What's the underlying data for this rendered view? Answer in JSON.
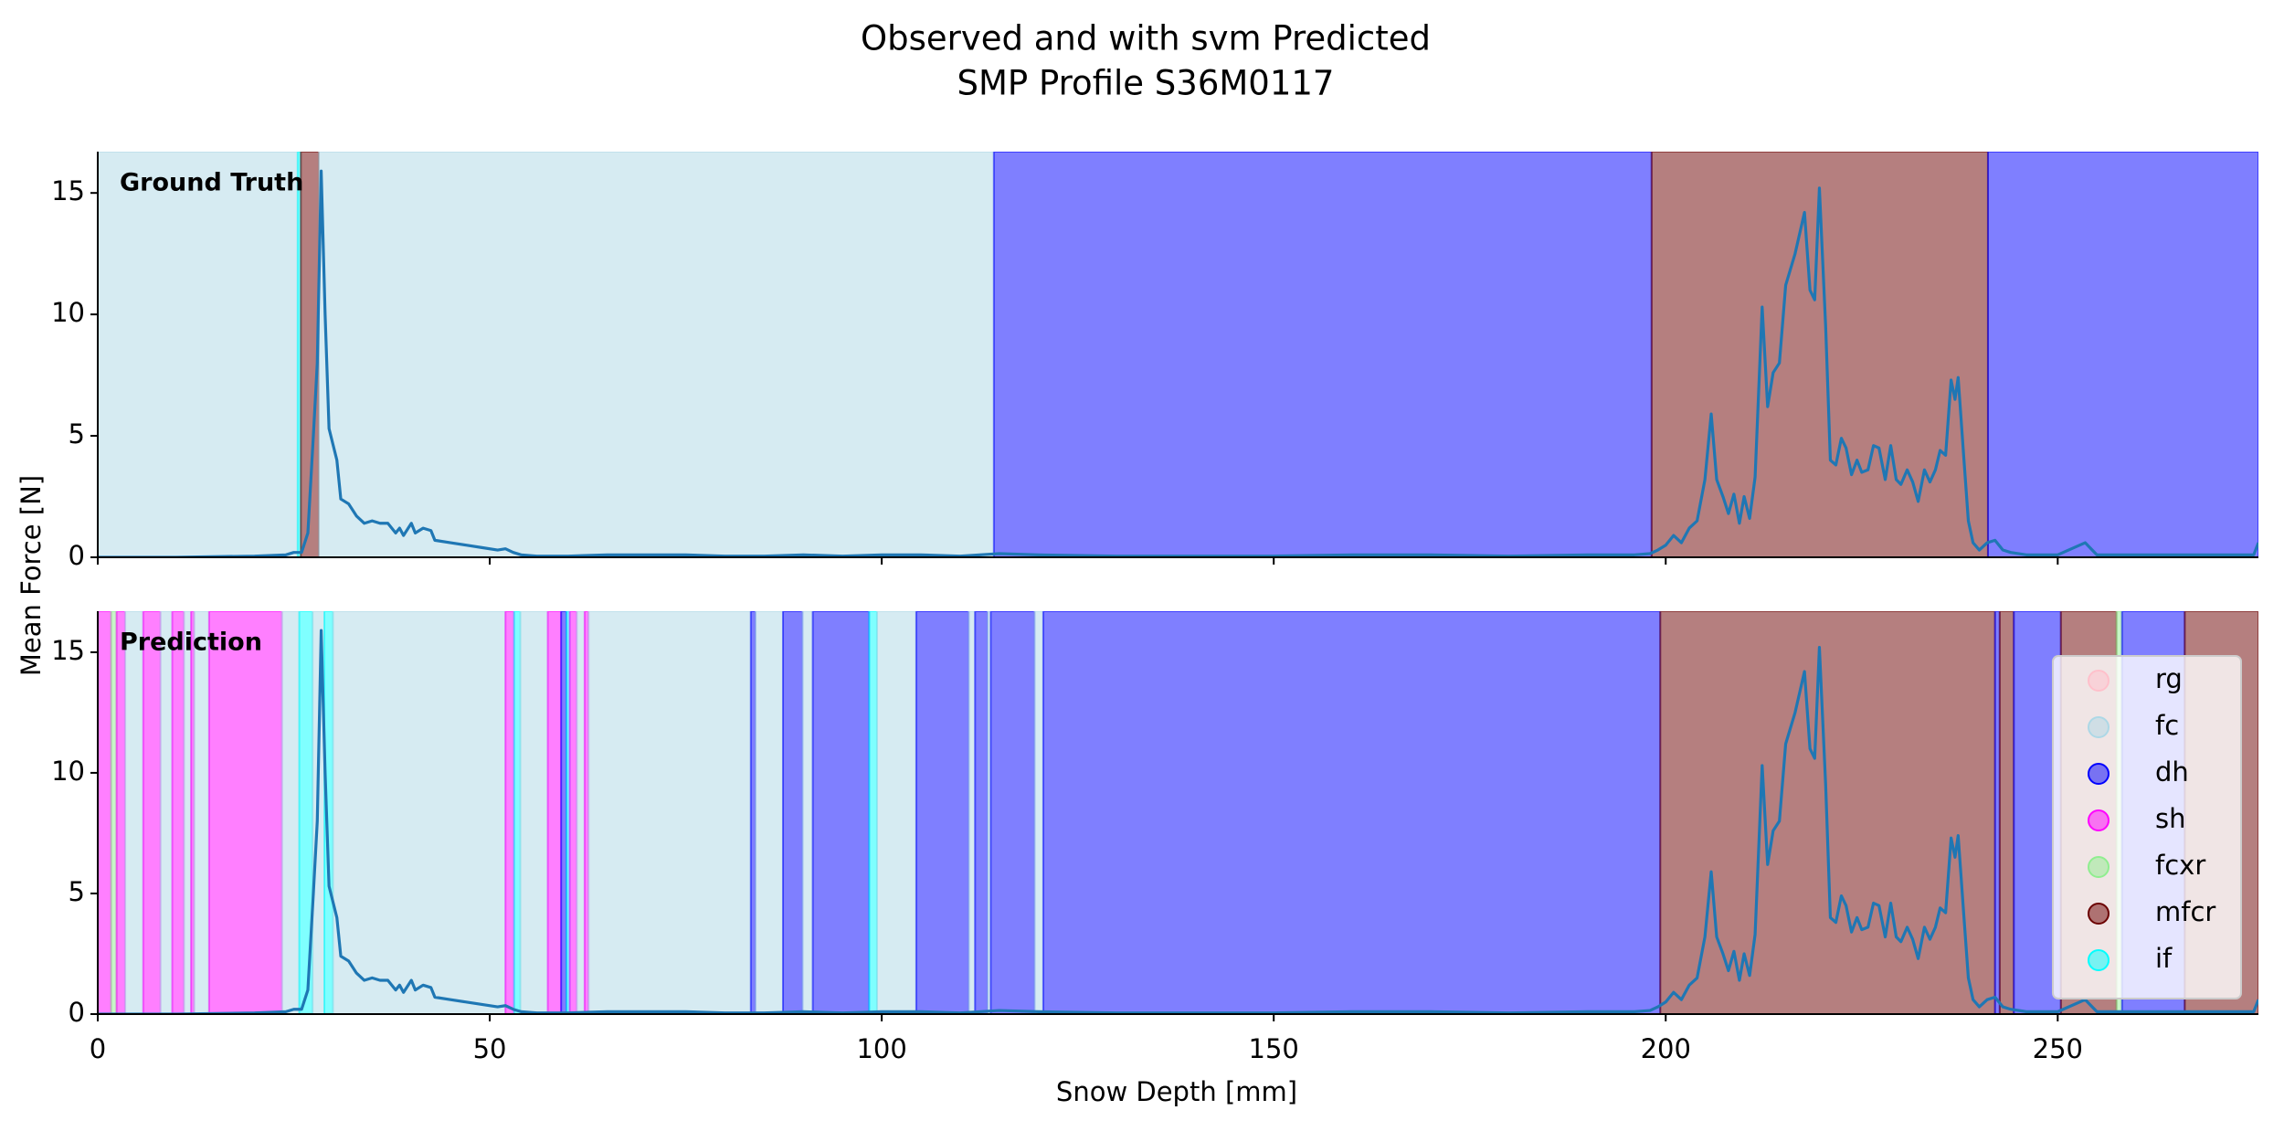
{
  "title": [
    "Observed and with svm Predicted",
    "SMP Profile S36M0117"
  ],
  "x_label": "Snow Depth [mm]",
  "y_label": "Mean Force [N]",
  "alpha": 0.5,
  "classes": [
    {
      "name": "rg",
      "color": "#ffc0cb"
    },
    {
      "name": "fc",
      "color": "#add8e6"
    },
    {
      "name": "dh",
      "color": "#0000ff"
    },
    {
      "name": "sh",
      "color": "#ff00ff"
    },
    {
      "name": "fcxr",
      "color": "#90ee90"
    },
    {
      "name": "mfcr",
      "color": "#6b0000"
    },
    {
      "name": "if",
      "color": "#00ffff"
    }
  ],
  "chart_data": [
    {
      "type": "line",
      "title": "Ground Truth",
      "color": "#1f77b4",
      "xlim": [
        0,
        275.6
      ],
      "ylim": [
        0,
        16.7
      ],
      "xticks": [
        0,
        50,
        100,
        150,
        200,
        250
      ],
      "yticks": [
        0,
        5,
        10,
        15
      ],
      "show_xtick_labels": false,
      "segments": [
        [
          "fc",
          0,
          25.5
        ],
        [
          "if",
          25.5,
          25.9
        ],
        [
          "mfcr",
          25.9,
          28.2
        ],
        [
          "fc",
          28.2,
          114.3
        ],
        [
          "dh",
          114.3,
          198.2
        ],
        [
          "mfcr",
          198.2,
          241.1
        ],
        [
          "dh",
          241.1,
          275.6
        ]
      ],
      "x": [
        0,
        10,
        20,
        24,
        25,
        26,
        26.8,
        27.5,
        28,
        28.5,
        29,
        29.5,
        30.5,
        31,
        32,
        33,
        34,
        35,
        36,
        37,
        38,
        38.5,
        39,
        40,
        40.5,
        41.5,
        42.5,
        43,
        45,
        47,
        49,
        51,
        52,
        53,
        54,
        56,
        60,
        65,
        70,
        75,
        80,
        85,
        90,
        95,
        100,
        105,
        110,
        115,
        120,
        130,
        140,
        150,
        160,
        170,
        180,
        190,
        196,
        198,
        199,
        200,
        201,
        202,
        203,
        204,
        205,
        205.8,
        206.5,
        207.3,
        208,
        208.7,
        209.4,
        210,
        210.7,
        211.4,
        212.3,
        213,
        213.7,
        214.5,
        215.3,
        216.5,
        217.7,
        218.4,
        219,
        219.6,
        220.4,
        221,
        221.7,
        222.4,
        223,
        223.7,
        224.4,
        225,
        225.8,
        226.5,
        227.2,
        228,
        228.7,
        229.4,
        230,
        230.8,
        231.5,
        232.2,
        233,
        233.7,
        234.4,
        235,
        235.7,
        236.4,
        236.9,
        237.3,
        238,
        238.6,
        239.2,
        240,
        241,
        242,
        243,
        244,
        246,
        250,
        253.5,
        255,
        260,
        265,
        270,
        275,
        275.6
      ],
      "values": [
        0,
        0,
        0.05,
        0.1,
        0.2,
        0.2,
        1,
        5,
        8,
        15.9,
        10,
        5.3,
        4,
        2.4,
        2.2,
        1.7,
        1.4,
        1.5,
        1.4,
        1.4,
        1,
        1.2,
        0.9,
        1.4,
        1,
        1.2,
        1.1,
        0.7,
        0.6,
        0.5,
        0.4,
        0.3,
        0.35,
        0.2,
        0.1,
        0.05,
        0.05,
        0.1,
        0.1,
        0.1,
        0.05,
        0.05,
        0.1,
        0.05,
        0.1,
        0.1,
        0.05,
        0.15,
        0.1,
        0.05,
        0.05,
        0.05,
        0.1,
        0.1,
        0.05,
        0.1,
        0.1,
        0.15,
        0.3,
        0.5,
        0.9,
        0.6,
        1.2,
        1.5,
        3.2,
        5.9,
        3.2,
        2.5,
        1.8,
        2.6,
        1.4,
        2.5,
        1.6,
        3.3,
        10.3,
        6.2,
        7.6,
        8,
        11.2,
        12.5,
        14.2,
        11,
        10.6,
        15.2,
        9.5,
        4,
        3.8,
        4.9,
        4.5,
        3.4,
        4,
        3.5,
        3.6,
        4.6,
        4.5,
        3.2,
        4.6,
        3.2,
        3,
        3.6,
        3.1,
        2.3,
        3.6,
        3.1,
        3.6,
        4.4,
        4.2,
        7.3,
        6.5,
        7.4,
        4.2,
        1.5,
        0.6,
        0.3,
        0.6,
        0.7,
        0.3,
        0.2,
        0.1,
        0.1,
        0.6,
        0.1,
        0.1,
        0.1,
        0.1,
        0.1,
        0.6
      ]
    },
    {
      "type": "line",
      "title": "Prediction",
      "color": "#1f77b4",
      "xlim": [
        0,
        275.6
      ],
      "ylim": [
        0,
        16.7
      ],
      "xticks": [
        0,
        50,
        100,
        150,
        200,
        250
      ],
      "yticks": [
        0,
        5,
        10,
        15
      ],
      "show_xtick_labels": true,
      "legend": "center right",
      "segments": [
        [
          "sh",
          0,
          1.7
        ],
        [
          "fcxr",
          1.7,
          2.4
        ],
        [
          "sh",
          2.4,
          3.5
        ],
        [
          "fc",
          3.5,
          5.8
        ],
        [
          "sh",
          5.8,
          8.0
        ],
        [
          "fc",
          8.0,
          9.5
        ],
        [
          "sh",
          9.5,
          11.0
        ],
        [
          "fc",
          11.0,
          11.9
        ],
        [
          "sh",
          11.9,
          12.3
        ],
        [
          "fc",
          12.3,
          14.2
        ],
        [
          "sh",
          14.2,
          23.5
        ],
        [
          "fc",
          23.5,
          25.7
        ],
        [
          "if",
          25.7,
          27.4
        ],
        [
          "fc",
          27.4,
          28.9
        ],
        [
          "if",
          28.9,
          30.0
        ],
        [
          "fc",
          30.0,
          52.0
        ],
        [
          "sh",
          52.0,
          53.1
        ],
        [
          "if",
          53.1,
          53.9
        ],
        [
          "fc",
          53.9,
          57.4
        ],
        [
          "sh",
          57.4,
          59.1
        ],
        [
          "dh",
          59.1,
          59.8
        ],
        [
          "if",
          59.8,
          60.2
        ],
        [
          "sh",
          60.2,
          61.1
        ],
        [
          "fc",
          61.1,
          62.1
        ],
        [
          "sh",
          62.1,
          62.6
        ],
        [
          "fc",
          62.6,
          83.3
        ],
        [
          "dh",
          83.3,
          83.9
        ],
        [
          "fc",
          83.9,
          87.4
        ],
        [
          "dh",
          87.4,
          89.9
        ],
        [
          "fc",
          89.9,
          91.2
        ],
        [
          "dh",
          91.2,
          98.4
        ],
        [
          "if",
          98.4,
          99.4
        ],
        [
          "fc",
          99.4,
          104.4
        ],
        [
          "dh",
          104.4,
          111.1
        ],
        [
          "fc",
          111.1,
          111.9
        ],
        [
          "dh",
          111.9,
          113.5
        ],
        [
          "fc",
          113.5,
          113.9
        ],
        [
          "dh",
          113.9,
          119.5
        ],
        [
          "fc",
          119.5,
          120.6
        ],
        [
          "dh",
          120.6,
          199.3
        ],
        [
          "mfcr",
          199.3,
          242.0
        ],
        [
          "dh",
          242.0,
          242.6
        ],
        [
          "mfcr",
          242.6,
          244.4
        ],
        [
          "dh",
          244.4,
          250.4
        ],
        [
          "mfcr",
          250.4,
          257.5
        ],
        [
          "fcxr",
          257.5,
          258.2
        ],
        [
          "dh",
          258.2,
          266.2
        ],
        [
          "mfcr",
          266.2,
          275.6
        ]
      ],
      "x": [
        0,
        10,
        20,
        24,
        25,
        26,
        26.8,
        27.5,
        28,
        28.5,
        29,
        29.5,
        30.5,
        31,
        32,
        33,
        34,
        35,
        36,
        37,
        38,
        38.5,
        39,
        40,
        40.5,
        41.5,
        42.5,
        43,
        45,
        47,
        49,
        51,
        52,
        53,
        54,
        56,
        60,
        65,
        70,
        75,
        80,
        85,
        90,
        95,
        100,
        105,
        110,
        115,
        120,
        130,
        140,
        150,
        160,
        170,
        180,
        190,
        196,
        198,
        199,
        200,
        201,
        202,
        203,
        204,
        205,
        205.8,
        206.5,
        207.3,
        208,
        208.7,
        209.4,
        210,
        210.7,
        211.4,
        212.3,
        213,
        213.7,
        214.5,
        215.3,
        216.5,
        217.7,
        218.4,
        219,
        219.6,
        220.4,
        221,
        221.7,
        222.4,
        223,
        223.7,
        224.4,
        225,
        225.8,
        226.5,
        227.2,
        228,
        228.7,
        229.4,
        230,
        230.8,
        231.5,
        232.2,
        233,
        233.7,
        234.4,
        235,
        235.7,
        236.4,
        236.9,
        237.3,
        238,
        238.6,
        239.2,
        240,
        241,
        242,
        243,
        244,
        246,
        250,
        253.5,
        255,
        260,
        265,
        270,
        275,
        275.6
      ],
      "values": [
        0,
        0,
        0.05,
        0.1,
        0.2,
        0.2,
        1,
        5,
        8,
        15.9,
        10,
        5.3,
        4,
        2.4,
        2.2,
        1.7,
        1.4,
        1.5,
        1.4,
        1.4,
        1,
        1.2,
        0.9,
        1.4,
        1,
        1.2,
        1.1,
        0.7,
        0.6,
        0.5,
        0.4,
        0.3,
        0.35,
        0.2,
        0.1,
        0.05,
        0.05,
        0.1,
        0.1,
        0.1,
        0.05,
        0.05,
        0.1,
        0.05,
        0.1,
        0.1,
        0.05,
        0.15,
        0.1,
        0.05,
        0.05,
        0.05,
        0.1,
        0.1,
        0.05,
        0.1,
        0.1,
        0.15,
        0.3,
        0.5,
        0.9,
        0.6,
        1.2,
        1.5,
        3.2,
        5.9,
        3.2,
        2.5,
        1.8,
        2.6,
        1.4,
        2.5,
        1.6,
        3.3,
        10.3,
        6.2,
        7.6,
        8,
        11.2,
        12.5,
        14.2,
        11,
        10.6,
        15.2,
        9.5,
        4,
        3.8,
        4.9,
        4.5,
        3.4,
        4,
        3.5,
        3.6,
        4.6,
        4.5,
        3.2,
        4.6,
        3.2,
        3,
        3.6,
        3.1,
        2.3,
        3.6,
        3.1,
        3.6,
        4.4,
        4.2,
        7.3,
        6.5,
        7.4,
        4.2,
        1.5,
        0.6,
        0.3,
        0.6,
        0.7,
        0.3,
        0.2,
        0.1,
        0.1,
        0.6,
        0.1,
        0.1,
        0.1,
        0.1,
        0.1,
        0.6
      ]
    }
  ]
}
